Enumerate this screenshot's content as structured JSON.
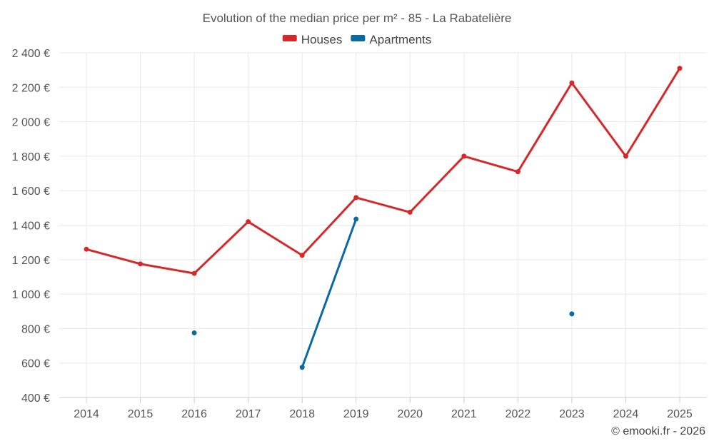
{
  "chart_data": {
    "type": "line",
    "title": "Evolution of the median price per m² - 85 - La Rabatelière",
    "categories": [
      "2014",
      "2015",
      "2016",
      "2017",
      "2018",
      "2019",
      "2020",
      "2021",
      "2022",
      "2023",
      "2024",
      "2025"
    ],
    "ylim": [
      400,
      2400
    ],
    "yticks": [
      400,
      600,
      800,
      1000,
      1200,
      1400,
      1600,
      1800,
      2000,
      2200,
      2400
    ],
    "ytick_labels": [
      "400 €",
      "600 €",
      "800 €",
      "1 000 €",
      "1 200 €",
      "1 400 €",
      "1 600 €",
      "1 800 €",
      "2 000 €",
      "2 200 €",
      "2 400 €"
    ],
    "grid": true,
    "legend_position": "top-center",
    "series": [
      {
        "name": "Houses",
        "color": "#d62828",
        "values": [
          1260,
          1175,
          1120,
          1420,
          1225,
          1560,
          1475,
          1800,
          1710,
          2225,
          1800,
          2310
        ]
      },
      {
        "name": "Apartments",
        "color": "#0a6aa1",
        "values": [
          null,
          null,
          775,
          null,
          575,
          1435,
          null,
          null,
          null,
          885,
          null,
          null
        ]
      }
    ]
  },
  "credit": "© emooki.fr - 2026"
}
